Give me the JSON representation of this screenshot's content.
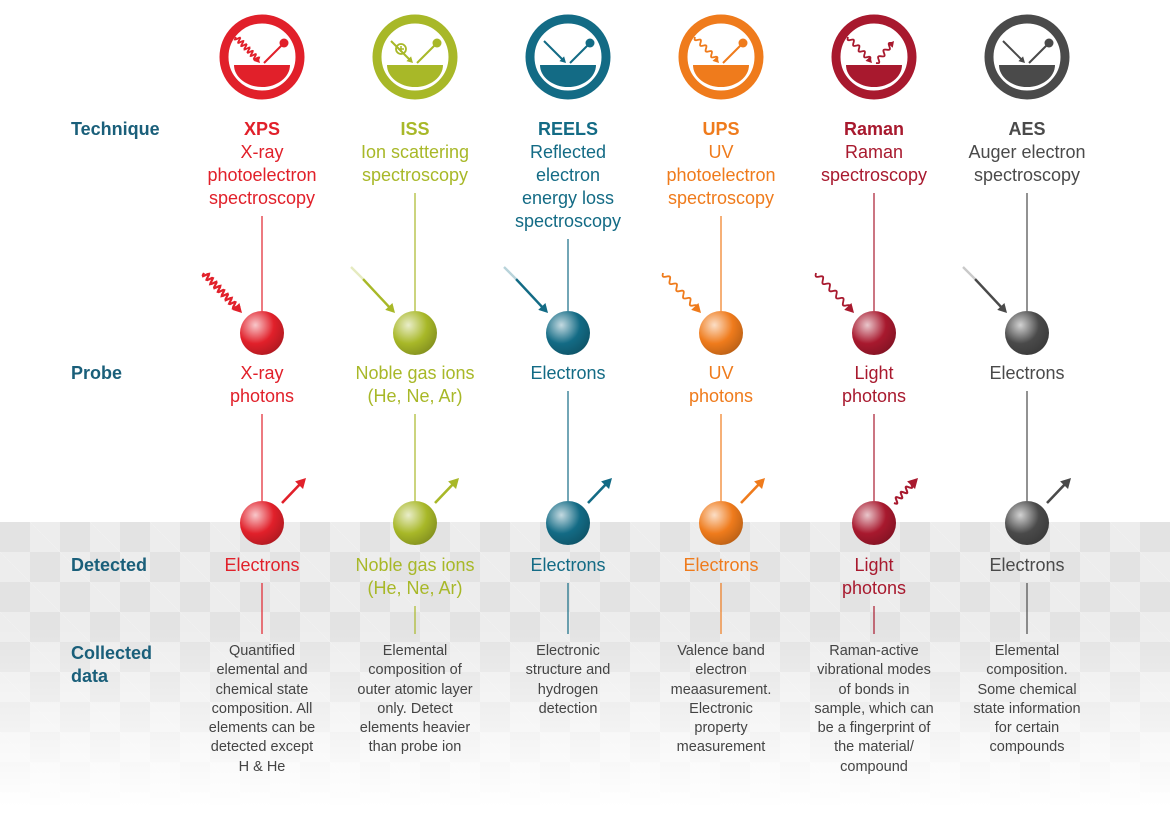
{
  "row_labels": {
    "technique": "Technique",
    "probe": "Probe",
    "detected": "Detected",
    "collected_line1": "Collected",
    "collected_line2": "data"
  },
  "techniques": [
    {
      "abbr": "XPS",
      "name_lines": [
        "X-ray",
        "photoelectron",
        "spectroscopy"
      ],
      "probe_lines": [
        "X-ray",
        "photons"
      ],
      "detected_lines": [
        "Electrons"
      ],
      "collected_lines": [
        "Quantified",
        "elemental and",
        "chemical state",
        "composition. All",
        "elements can be",
        "detected except",
        "H & He"
      ],
      "color": "#e1202a",
      "probe_kind": "wave-strong",
      "detected_kind": "arrow"
    },
    {
      "abbr": "ISS",
      "name_lines": [
        "Ion scattering",
        "spectroscopy"
      ],
      "probe_lines": [
        "Noble gas ions",
        "(He, Ne, Ar)"
      ],
      "detected_lines": [
        "Noble gas ions",
        "(He, Ne, Ar)"
      ],
      "collected_lines": [
        "Elemental",
        "composition of",
        "outer atomic layer",
        "only. Detect",
        "elements heavier",
        "than probe ion"
      ],
      "color": "#a8b828",
      "probe_kind": "arrow",
      "detected_kind": "arrow"
    },
    {
      "abbr": "REELS",
      "name_lines": [
        "Reflected",
        "electron",
        "energy loss",
        "spectroscopy"
      ],
      "probe_lines": [
        "Electrons"
      ],
      "detected_lines": [
        "Electrons"
      ],
      "collected_lines": [
        "Electronic",
        "structure and",
        "hydrogen",
        "detection"
      ],
      "color": "#136b85",
      "probe_kind": "arrow",
      "detected_kind": "arrow"
    },
    {
      "abbr": "UPS",
      "name_lines": [
        "UV",
        "photoelectron",
        "spectroscopy"
      ],
      "probe_lines": [
        "UV",
        "photons"
      ],
      "detected_lines": [
        "Electrons"
      ],
      "collected_lines": [
        "Valence band",
        "electron",
        "meaasurement.",
        "Electronic",
        "property",
        "measurement"
      ],
      "color": "#ef7b1c",
      "probe_kind": "wave",
      "detected_kind": "arrow"
    },
    {
      "abbr": "Raman",
      "name_lines": [
        "Raman",
        "spectroscopy"
      ],
      "probe_lines": [
        "Light",
        "photons"
      ],
      "detected_lines": [
        "Light",
        "photons"
      ],
      "collected_lines": [
        "Raman-active",
        "vibrational modes",
        "of bonds in",
        "sample, which can",
        "be a fingerprint of",
        "the material/",
        "compound"
      ],
      "color": "#a8192e",
      "probe_kind": "wave",
      "detected_kind": "wave"
    },
    {
      "abbr": "AES",
      "name_lines": [
        "Auger electron",
        "spectroscopy"
      ],
      "probe_lines": [
        "Electrons"
      ],
      "detected_lines": [
        "Electrons"
      ],
      "collected_lines": [
        "Elemental",
        "composition.",
        "Some chemical",
        "state information",
        "for certain",
        "compounds"
      ],
      "color": "#4a4a4a",
      "probe_kind": "arrow",
      "detected_kind": "arrow"
    }
  ]
}
